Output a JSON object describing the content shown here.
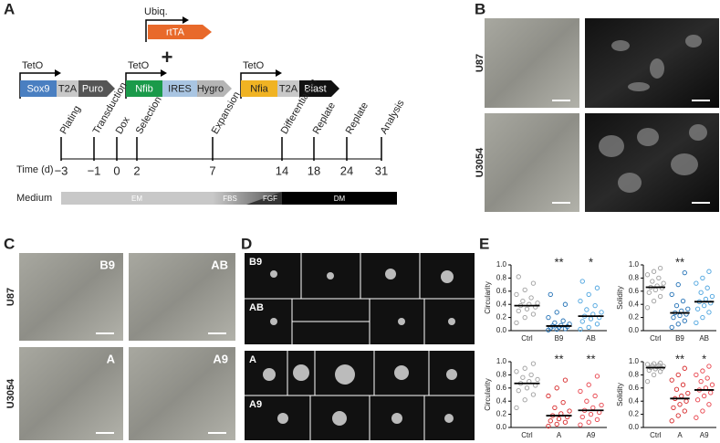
{
  "panels": {
    "A": {
      "label": "A",
      "ubiq": {
        "promoter": "Ubiq.",
        "gene": "rtTA"
      },
      "plus": "+",
      "constructs": [
        {
          "promoter": "TetO",
          "parts": [
            "Sox9",
            "T2A",
            "Puro"
          ]
        },
        {
          "promoter": "TetO",
          "parts": [
            "Nfib",
            "IRES",
            "Hygro"
          ]
        },
        {
          "promoter": "TetO",
          "parts": [
            "Nfia",
            "T2A",
            "Blast"
          ]
        }
      ],
      "timeline": {
        "time_label": "Time (d)",
        "medium_label": "Medium",
        "events": [
          {
            "label": "Plating",
            "day": {
              "value": -3,
              "label": "−3"
            }
          },
          {
            "label": "Transduction",
            "day": {
              "value": -1,
              "label": "−1"
            }
          },
          {
            "label": "Dox",
            "day": 0
          },
          {
            "label": "Selection",
            "day": 2
          },
          {
            "label": "Expansion",
            "day": 7
          },
          {
            "label": "Differentiation",
            "day": 14
          },
          {
            "label": "Replate",
            "day": 18
          },
          {
            "label": "Replate",
            "day": 24
          },
          {
            "label": "Analysis",
            "day": 31
          }
        ],
        "media": [
          "EM",
          "FBS",
          "FGF",
          "DM"
        ]
      }
    },
    "B": {
      "label": "B",
      "rows": [
        "U87",
        "U3054"
      ]
    },
    "C": {
      "label": "C",
      "rows": [
        "U87",
        "U3054"
      ],
      "images": [
        "B9",
        "AB",
        "A",
        "A9"
      ]
    },
    "D": {
      "label": "D",
      "rows": [
        "B9",
        "AB",
        "A",
        "A9"
      ]
    },
    "E": {
      "label": "E",
      "chart_data": [
        {
          "type": "strip",
          "ylabel": "Circularity",
          "categories": [
            "Ctrl",
            "B9",
            "AB"
          ],
          "significance": [
            null,
            "**",
            "*"
          ],
          "ylim": [
            0,
            1
          ],
          "yticks": [
            {
              "value": 0,
              "label": "0.0"
            },
            {
              "value": 0.2,
              "label": "0.2"
            },
            {
              "value": 0.4,
              "label": "0.4"
            },
            {
              "value": 0.6,
              "label": "0.6"
            },
            {
              "value": 0.8,
              "label": "0.8"
            },
            {
              "value": 1,
              "label": "1.0"
            }
          ],
          "groups": [
            {
              "color": "#9e9e9e",
              "median": 0.38,
              "values": [
                0.12,
                0.2,
                0.25,
                0.3,
                0.33,
                0.36,
                0.38,
                0.4,
                0.42,
                0.45,
                0.5,
                0.55,
                0.62,
                0.72,
                0.82
              ]
            },
            {
              "color": "#1f6fb5",
              "median": 0.07,
              "values": [
                0.01,
                0.02,
                0.03,
                0.04,
                0.05,
                0.06,
                0.07,
                0.08,
                0.1,
                0.12,
                0.15,
                0.2,
                0.28,
                0.4,
                0.55
              ]
            },
            {
              "color": "#4aa3df",
              "median": 0.22,
              "values": [
                0.02,
                0.05,
                0.1,
                0.14,
                0.18,
                0.2,
                0.22,
                0.25,
                0.28,
                0.32,
                0.38,
                0.45,
                0.55,
                0.65,
                0.75
              ]
            }
          ]
        },
        {
          "type": "strip",
          "ylabel": "Solidity",
          "categories": [
            "Ctrl",
            "B9",
            "AB"
          ],
          "significance": [
            null,
            "**",
            null
          ],
          "ylim": [
            0,
            1
          ],
          "yticks": [
            {
              "value": 0,
              "label": "0.0"
            },
            {
              "value": 0.2,
              "label": "0.2"
            },
            {
              "value": 0.4,
              "label": "0.4"
            },
            {
              "value": 0.6,
              "label": "0.6"
            },
            {
              "value": 0.8,
              "label": "0.8"
            },
            {
              "value": 1,
              "label": "1.0"
            }
          ],
          "groups": [
            {
              "color": "#9e9e9e",
              "median": 0.66,
              "values": [
                0.35,
                0.45,
                0.52,
                0.58,
                0.62,
                0.65,
                0.66,
                0.68,
                0.72,
                0.75,
                0.8,
                0.85,
                0.9,
                0.95
              ]
            },
            {
              "color": "#1f6fb5",
              "median": 0.27,
              "values": [
                0.05,
                0.1,
                0.15,
                0.2,
                0.23,
                0.25,
                0.27,
                0.3,
                0.33,
                0.38,
                0.45,
                0.55,
                0.7,
                0.88
              ]
            },
            {
              "color": "#4aa3df",
              "median": 0.44,
              "values": [
                0.12,
                0.2,
                0.28,
                0.33,
                0.38,
                0.42,
                0.44,
                0.48,
                0.52,
                0.58,
                0.65,
                0.72,
                0.8,
                0.9
              ]
            }
          ]
        },
        {
          "type": "strip",
          "ylabel": "Circularity",
          "categories": [
            "Ctrl",
            "A",
            "A9"
          ],
          "significance": [
            null,
            "**",
            "**"
          ],
          "ylim": [
            0,
            1
          ],
          "yticks": [
            {
              "value": 0,
              "label": "0.0"
            },
            {
              "value": 0.2,
              "label": "0.2"
            },
            {
              "value": 0.4,
              "label": "0.4"
            },
            {
              "value": 0.6,
              "label": "0.6"
            },
            {
              "value": 0.8,
              "label": "0.8"
            },
            {
              "value": 1,
              "label": "1.0"
            }
          ],
          "groups": [
            {
              "color": "#9e9e9e",
              "median": 0.67,
              "values": [
                0.3,
                0.42,
                0.5,
                0.56,
                0.6,
                0.64,
                0.67,
                0.7,
                0.73,
                0.76,
                0.8,
                0.85,
                0.9,
                0.97
              ]
            },
            {
              "color": "#d62728",
              "median": 0.18,
              "values": [
                0.02,
                0.05,
                0.08,
                0.1,
                0.13,
                0.16,
                0.18,
                0.21,
                0.25,
                0.3,
                0.38,
                0.48,
                0.6,
                0.72
              ]
            },
            {
              "color": "#e8414a",
              "median": 0.26,
              "values": [
                0.04,
                0.08,
                0.12,
                0.16,
                0.2,
                0.23,
                0.26,
                0.3,
                0.34,
                0.4,
                0.48,
                0.55,
                0.65,
                0.78
              ]
            }
          ]
        },
        {
          "type": "strip",
          "ylabel": "Solidity",
          "categories": [
            "Ctrl",
            "A",
            "A9"
          ],
          "significance": [
            null,
            "**",
            "*"
          ],
          "ylim": [
            0,
            1
          ],
          "yticks": [
            {
              "value": 0,
              "label": "0.0"
            },
            {
              "value": 0.2,
              "label": "0.2"
            },
            {
              "value": 0.4,
              "label": "0.4"
            },
            {
              "value": 0.6,
              "label": "0.6"
            },
            {
              "value": 0.8,
              "label": "0.8"
            },
            {
              "value": 1,
              "label": "1.0"
            }
          ],
          "groups": [
            {
              "color": "#9e9e9e",
              "median": 0.91,
              "values": [
                0.7,
                0.8,
                0.85,
                0.87,
                0.89,
                0.9,
                0.91,
                0.92,
                0.93,
                0.94,
                0.95,
                0.96,
                0.97,
                0.98
              ]
            },
            {
              "color": "#d62728",
              "median": 0.44,
              "values": [
                0.1,
                0.18,
                0.25,
                0.3,
                0.35,
                0.4,
                0.44,
                0.48,
                0.52,
                0.58,
                0.65,
                0.72,
                0.8,
                0.9
              ]
            },
            {
              "color": "#e8414a",
              "median": 0.57,
              "values": [
                0.15,
                0.25,
                0.35,
                0.42,
                0.48,
                0.53,
                0.57,
                0.6,
                0.65,
                0.7,
                0.75,
                0.8,
                0.86,
                0.93
              ]
            }
          ]
        }
      ]
    }
  }
}
